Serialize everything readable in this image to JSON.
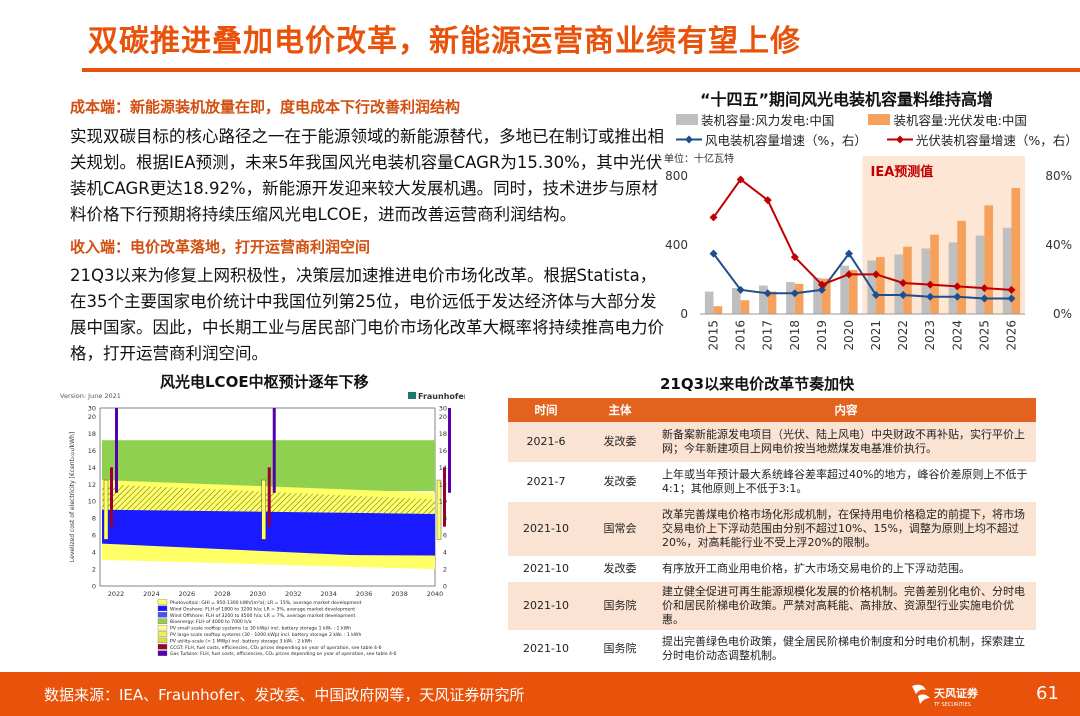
{
  "title": "双碳推进叠加电价改革，新能源运营商业绩有望上修",
  "section1": {
    "heading": "成本端：新能源装机放量在即，度电成本下行改善利润结构",
    "text": "实现双碳目标的核心路径之一在于能源领域的新能源替代，多地已在制订或推出相关规划。根据IEA预测，未来5年我国风光电装机容量CAGR为15.30%，其中光伏装机CAGR更达18.92%，新能源开发迎来较大发展机遇。同时，技术进步与原材料价格下行预期将持续压缩风光电LCOE，进而改善运营商利润结构。"
  },
  "section2": {
    "heading": "收入端：电价改革落地，打开运营商利润空间",
    "text": "21Q3以来为修复上网积极性，决策层加速推进电价市场化改革。根据Statista，在35个主要国家电价统计中我国位列第25位，电价远低于发达经济体与大部分发展中国家。因此，中长期工业与居民部门电价市场化改革大概率将持续推高电力价格，打开运营商利润空间。"
  },
  "chart_data": [
    {
      "type": "bar",
      "title": "“十四五”期间风光电装机容量料维持高增",
      "unit_label": "单位：十亿瓦特",
      "annotation": "IEA预测值",
      "categories": [
        "2015",
        "2016",
        "2017",
        "2018",
        "2019",
        "2020",
        "2021",
        "2022",
        "2023",
        "2024",
        "2025",
        "2026"
      ],
      "ylim_left": [
        0,
        800
      ],
      "yticks_left": [
        "0",
        "400",
        "800"
      ],
      "ylim_right": [
        0,
        80
      ],
      "yticks_right": [
        "0%",
        "40%",
        "80%"
      ],
      "series": [
        {
          "name": "装机容量:风力发电:中国",
          "kind": "bar",
          "color": "#bfbfbf",
          "values": [
            130,
            150,
            165,
            185,
            210,
            280,
            310,
            345,
            380,
            415,
            455,
            500
          ]
        },
        {
          "name": "装机容量:光伏发电:中国",
          "kind": "bar",
          "color": "#f5a15b",
          "values": [
            45,
            80,
            130,
            175,
            205,
            255,
            330,
            390,
            460,
            540,
            630,
            730
          ]
        },
        {
          "name": "风电装机容量增速（%，右）",
          "kind": "line",
          "color": "#1f4e8c",
          "values": [
            35,
            14,
            12,
            12,
            14,
            35,
            11,
            11,
            10,
            10,
            9,
            9
          ]
        },
        {
          "name": "光伏装机容量增速（%，右）",
          "kind": "line",
          "color": "#c00000",
          "values": [
            56,
            78,
            66,
            33,
            17,
            23,
            23,
            18,
            17,
            16,
            15,
            14
          ]
        }
      ]
    }
  ],
  "lcoe_chart": {
    "title": "风光电LCOE中枢预计逐年下移",
    "version": "Version: June 2021",
    "brand": "Fraunhofer",
    "ylabel": "Levelized cost of electricity [€cent₂₀₂₁/kWh]",
    "yticks": [
      "0",
      "2",
      "4",
      "6",
      "8",
      "10",
      "12",
      "14",
      "16",
      "18",
      "20",
      "30"
    ],
    "xticks": [
      "2022",
      "2024",
      "2026",
      "2028",
      "2030",
      "2032",
      "2034",
      "2036",
      "2038",
      "2040"
    ],
    "legend": [
      {
        "color": "#ffff66",
        "label": "Photovoltaic: GHI = 950-1300 kWh/(m²a); LR = 15%, average market development"
      },
      {
        "color": "#1a1aff",
        "label": "Wind Onshore: FLH of 1800 to 3200 h/a; LR = 5%, average market development"
      },
      {
        "color": "#4d4dff",
        "label": "Wind Offshore: FLH of 3200 to 4500 h/a; LR = 7%, average market development"
      },
      {
        "color": "#8fd14f",
        "label": "Bioenergy: FLH of 4000 to 7000 h/a"
      },
      {
        "color": "#ffff99",
        "label": "PV small scale rooftop systems (≤ 30 kWp) incl. battery storage 1 kWₕ : 1 kWh"
      },
      {
        "color": "#eeee55",
        "label": "PV large scale rooftop systems (30 - 1000 kWp) incl. battery storage 2 kWₕ : 1 kWh"
      },
      {
        "color": "#dddd44",
        "label": "PV utility-scale (> 1 MWp) incl. battery storage 3 kWₕ : 2 kWh"
      },
      {
        "color": "#990033",
        "label": "CCGT: FLH, fuel costs, efficiencies, CO₂ prices depending on year of operation, see table 4-6"
      },
      {
        "color": "#5500aa",
        "label": "Gas Turbine: FLH, fuel costs, efficiencies, CO₂ prices depending on year of operation, see table 4-6"
      }
    ]
  },
  "reform_table": {
    "title": "21Q3以来电价改革节奏加快",
    "headers": [
      "时间",
      "主体",
      "内容"
    ],
    "rows": [
      [
        "2021-6",
        "发改委",
        "新备案新能源发电项目（光伏、陆上风电）中央财政不再补贴，实行平价上网；今年新建项目上网电价按当地燃煤发电基准价执行。"
      ],
      [
        "2021-7",
        "发改委",
        "上年或当年预计最大系统峰谷差率超过40%的地方，峰谷价差原则上不低于4:1；其他原则上不低于3:1。"
      ],
      [
        "2021-10",
        "国常会",
        "改革完善煤电价格市场化形成机制，在保持用电价格稳定的前提下，将市场交易电价上下浮动范围由分别不超过10%、15%，调整为原则上均不超过20%，对高耗能行业不受上浮20%的限制。"
      ],
      [
        "2021-10",
        "发改委",
        "有序放开工商业用电价格，扩大市场交易电价的上下浮动范围。"
      ],
      [
        "2021-10",
        "国务院",
        "建立健全促进可再生能源规模化发展的价格机制。完善差别化电价、分时电价和居民阶梯电价政策。严禁对高耗能、高排放、资源型行业实施电价优惠。"
      ],
      [
        "2021-10",
        "国务院",
        "提出完善绿色电价政策，健全居民阶梯电价制度和分时电价机制，探索建立分时电价动态调整机制。"
      ]
    ]
  },
  "footer": {
    "source": "数据来源：IEA、Fraunhofer、发改委、中国政府网等，天风证券研究所",
    "page": "61",
    "logo_text": "天风证券",
    "logo_sub": "TF SECURITIES",
    "accent": "#e8520a"
  }
}
